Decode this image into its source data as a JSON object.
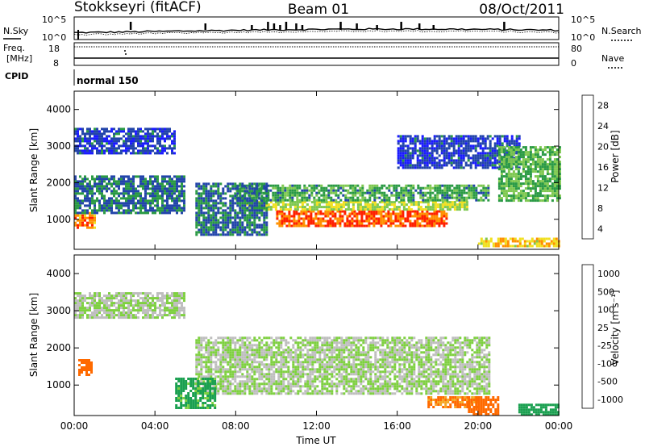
{
  "header": {
    "station": "Stokkseyri (fitACF)",
    "beam": "Beam 01",
    "date": "08/Oct/2011"
  },
  "panels": {
    "nsky_label": "N.Sky",
    "nsearch_label": "N.Search",
    "freq_label_line1": "Freq.",
    "freq_label_line2": "[MHz]",
    "nave_label": "Nave",
    "cpid_label": "CPID",
    "cpid_value": "normal 150",
    "noise_ticks_left": [
      "10^5",
      "10^0"
    ],
    "noise_ticks_right": [
      "10^5",
      "10^0"
    ],
    "freq_ticks": [
      "18",
      "8"
    ],
    "nave_ticks": [
      "80",
      "0"
    ]
  },
  "x_axis": {
    "label": "Time UT",
    "ticks": [
      "00:00",
      "04:00",
      "08:00",
      "12:00",
      "16:00",
      "20:00",
      "00:00"
    ]
  },
  "y_axis": {
    "label": "Slant Range [km]",
    "ticks": [
      "1000",
      "2000",
      "3000",
      "4000"
    ]
  },
  "power_scale": {
    "label": "Power [dB]",
    "ticks": [
      "4",
      "8",
      "12",
      "16",
      "20",
      "24",
      "28"
    ],
    "colors": [
      "#1a1aff",
      "#2244aa",
      "#2a9a44",
      "#7ec850",
      "#f0e020",
      "#ff9000",
      "#ff2000"
    ]
  },
  "velocity_scale": {
    "label": "Velocity [m s⁻¹]",
    "ticks": [
      "1000",
      "500",
      "100",
      "25",
      "-25",
      "-100",
      "-500",
      "-1000"
    ],
    "colors": [
      "#1a3ecc",
      "#1a66aa",
      "#1aa050",
      "#7ed040",
      "#bebebe",
      "#f5a623",
      "#ff6a00",
      "#ff1500"
    ]
  },
  "chart_data": [
    {
      "type": "heatmap",
      "title": "Power",
      "xlabel": "",
      "ylabel": "Slant Range [km]",
      "x_range_hours": [
        0,
        24
      ],
      "ylim_km": [
        180,
        4500
      ],
      "colorbar": {
        "label": "Power [dB]",
        "range": [
          0,
          32
        ]
      },
      "regions": [
        {
          "t": [
            10.0,
            18.5
          ],
          "r": [
            850,
            1250
          ],
          "value": 28
        },
        {
          "t": [
            8.5,
            19.5
          ],
          "r": [
            1250,
            1500
          ],
          "value": 18
        },
        {
          "t": [
            8.0,
            20.5
          ],
          "r": [
            1500,
            1950
          ],
          "value": 12
        },
        {
          "t": [
            0.0,
            1.0
          ],
          "r": [
            800,
            1200
          ],
          "value": 26
        },
        {
          "t": [
            0.0,
            5.5
          ],
          "r": [
            1200,
            2200
          ],
          "value": 9
        },
        {
          "t": [
            0.0,
            5.0
          ],
          "r": [
            2800,
            3500
          ],
          "value": 6
        },
        {
          "t": [
            6.0,
            9.5
          ],
          "r": [
            600,
            2000
          ],
          "value": 9
        },
        {
          "t": [
            16.0,
            22.0
          ],
          "r": [
            2400,
            3300
          ],
          "value": 6
        },
        {
          "t": [
            21.0,
            24.0
          ],
          "r": [
            1500,
            3000
          ],
          "value": 14
        },
        {
          "t": [
            20.0,
            24.0
          ],
          "r": [
            250,
            500
          ],
          "value": 22
        }
      ]
    },
    {
      "type": "heatmap",
      "title": "Velocity",
      "xlabel": "Time UT",
      "ylabel": "Slant Range [km]",
      "x_range_hours": [
        0,
        24
      ],
      "ylim_km": [
        180,
        4500
      ],
      "colorbar": {
        "label": "Velocity [m s⁻¹]",
        "range": [
          -1000,
          1000
        ]
      },
      "regions": [
        {
          "t": [
            6.0,
            20.5
          ],
          "r": [
            800,
            2300
          ],
          "value": 0
        },
        {
          "t": [
            0.0,
            5.5
          ],
          "r": [
            2800,
            3500
          ],
          "value": 0
        },
        {
          "t": [
            0.2,
            0.9
          ],
          "r": [
            1300,
            1700
          ],
          "value": -400
        },
        {
          "t": [
            17.5,
            20.0
          ],
          "r": [
            400,
            700
          ],
          "value": -300
        },
        {
          "t": [
            19.5,
            21.0
          ],
          "r": [
            200,
            700
          ],
          "value": -700
        },
        {
          "t": [
            22.0,
            24.0
          ],
          "r": [
            200,
            500
          ],
          "value": 100
        },
        {
          "t": [
            5.0,
            7.0
          ],
          "r": [
            400,
            1200
          ],
          "value": 80
        }
      ]
    }
  ]
}
